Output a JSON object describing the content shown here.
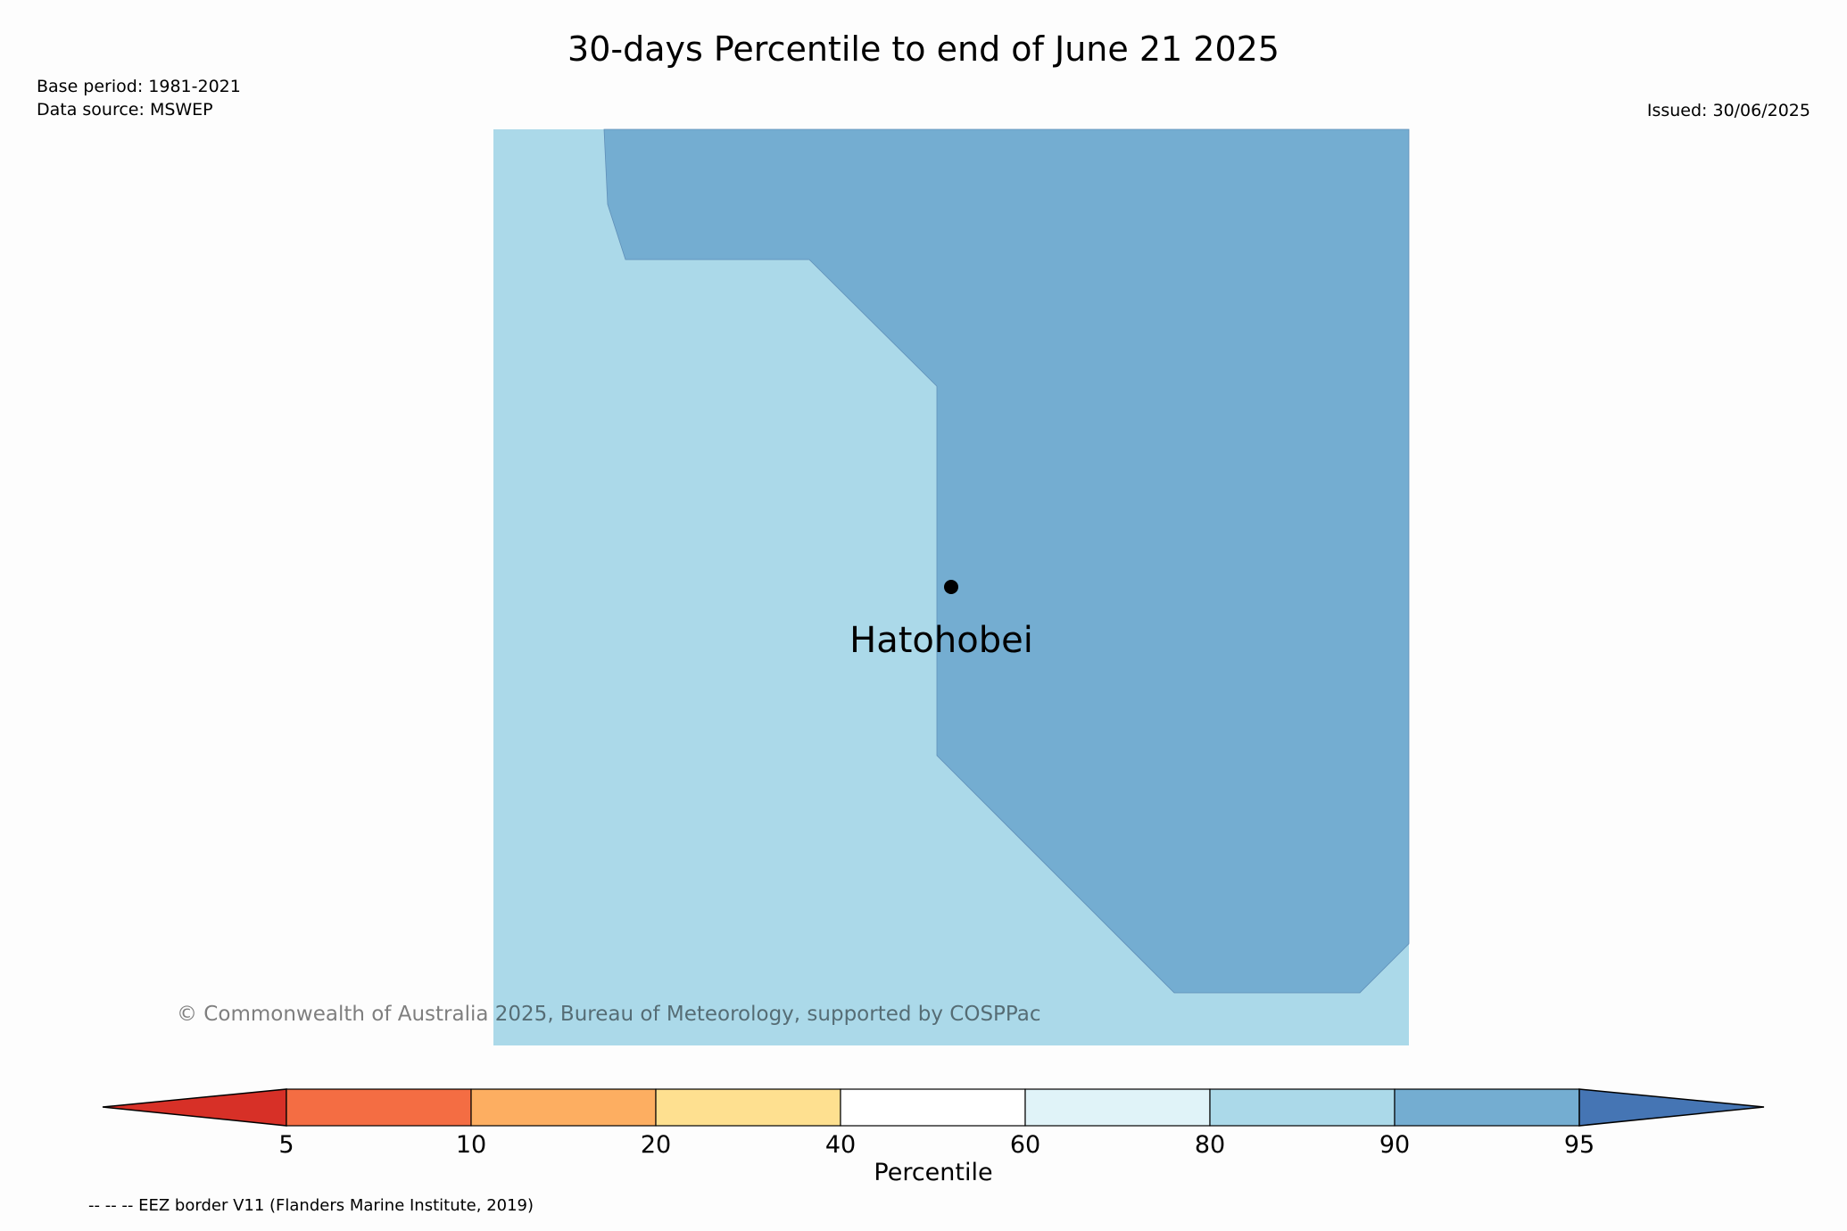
{
  "title": "30-days Percentile to end of June 21 2025",
  "base_period": "Base period: 1981-2021",
  "data_source": "Data source: MSWEP",
  "issued": "Issued: 30/06/2025",
  "location": {
    "label": "Hatohobei"
  },
  "copyright": "© Commonwealth of Australia 2025, Bureau of Meteorology, supported by COSPPac",
  "colorbar": {
    "label": "Percentile",
    "ticks": [
      "5",
      "10",
      "20",
      "40",
      "60",
      "80",
      "90",
      "95"
    ],
    "colors": [
      "#d73027",
      "#f46d43",
      "#fdae61",
      "#fee090",
      "#ffffff",
      "#e0f3f8",
      "#abd9e9",
      "#74add1",
      "#4575b4"
    ]
  },
  "regions": {
    "background_color": "#abd9e9",
    "overlay_color": "#74add1"
  },
  "footnote": "-- -- -- EEZ border V11 (Flanders Marine Institute, 2019)"
}
